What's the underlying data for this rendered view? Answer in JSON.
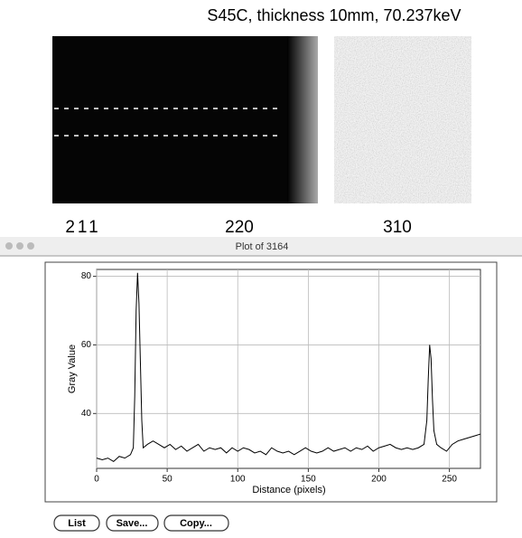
{
  "header": {
    "title": "S45C, thickness 10mm, 70.237keV"
  },
  "image_labels": [
    "211",
    "220",
    "310"
  ],
  "window": {
    "title": "Plot of 3164"
  },
  "chart_data": {
    "type": "line",
    "x_label": "Distance (pixels)",
    "y_label": "Gray Value",
    "xlim": [
      0,
      272
    ],
    "ylim": [
      24,
      82
    ],
    "xticks": [
      0,
      50,
      100,
      150,
      200,
      250
    ],
    "yticks": [
      40,
      60,
      80
    ],
    "grid": true,
    "color": "#000000",
    "x": [
      0,
      4,
      8,
      12,
      16,
      20,
      24,
      26,
      27,
      28,
      29,
      30,
      31,
      32,
      33,
      36,
      40,
      44,
      48,
      52,
      56,
      60,
      64,
      68,
      72,
      76,
      80,
      84,
      88,
      92,
      96,
      100,
      104,
      108,
      112,
      116,
      120,
      124,
      128,
      132,
      136,
      140,
      144,
      148,
      152,
      156,
      160,
      164,
      168,
      172,
      176,
      180,
      184,
      188,
      192,
      196,
      200,
      204,
      208,
      212,
      216,
      220,
      224,
      228,
      232,
      234,
      235,
      236,
      237,
      238,
      239,
      241,
      244,
      248,
      252,
      256,
      260,
      264,
      268,
      272
    ],
    "values": [
      27,
      26.5,
      27,
      26,
      27.5,
      27,
      28,
      30,
      45,
      70,
      81,
      72,
      55,
      38,
      30,
      31,
      32,
      31,
      30,
      31,
      29.5,
      30.5,
      29,
      30,
      31,
      29,
      30,
      29.5,
      30,
      28.5,
      30,
      29,
      30,
      29.5,
      28.5,
      29,
      28,
      30,
      29,
      28.5,
      29,
      28,
      29,
      30,
      29,
      28.5,
      29,
      30,
      29,
      29.5,
      30,
      29,
      30,
      29.5,
      30.5,
      29,
      30,
      30.5,
      31,
      30,
      29.5,
      30,
      29.5,
      30,
      31,
      38,
      50,
      60,
      56,
      44,
      35,
      31,
      30,
      29,
      31,
      32,
      32.5,
      33,
      33.5,
      34
    ]
  },
  "buttons": [
    "List",
    "Save...",
    "Copy..."
  ]
}
